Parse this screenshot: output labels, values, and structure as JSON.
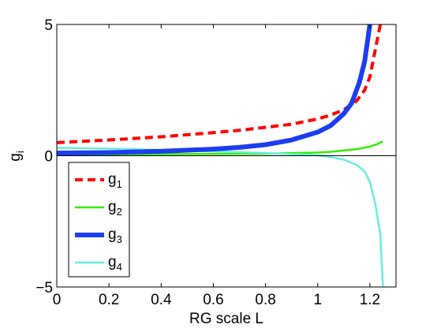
{
  "chart_data": {
    "type": "line",
    "title": "",
    "xlabel": "RG scale L",
    "ylabel": "g",
    "ylabel_subscript": "i",
    "xlim": [
      0,
      1.3
    ],
    "ylim": [
      -5,
      5
    ],
    "xticks": [
      0,
      0.2,
      0.4,
      0.6,
      0.8,
      1,
      1.2
    ],
    "xtick_labels": [
      "0",
      "0.2",
      "0.4",
      "0.6",
      "0.8",
      "1",
      "1.2"
    ],
    "yticks": [
      -5,
      0,
      5
    ],
    "ytick_labels": [
      "−5",
      "0",
      "5"
    ],
    "grid": false,
    "zero_line": true,
    "legend_position": "lower-left",
    "series": [
      {
        "name": "g",
        "subscript": "1",
        "color": "#ff0000",
        "style": "dashed",
        "x": [
          0,
          0.1,
          0.2,
          0.3,
          0.4,
          0.5,
          0.6,
          0.7,
          0.8,
          0.9,
          1.0,
          1.05,
          1.1,
          1.15,
          1.18,
          1.2,
          1.22,
          1.24
        ],
        "y": [
          0.5,
          0.55,
          0.6,
          0.66,
          0.72,
          0.8,
          0.88,
          0.97,
          1.08,
          1.2,
          1.4,
          1.55,
          1.75,
          2.1,
          2.5,
          3.0,
          4.0,
          5.0
        ]
      },
      {
        "name": "g",
        "subscript": "2",
        "color": "#33ee00",
        "style": "solid",
        "x": [
          0,
          0.2,
          0.4,
          0.6,
          0.8,
          0.9,
          1.0,
          1.05,
          1.1,
          1.15,
          1.2,
          1.23,
          1.25
        ],
        "y": [
          0.05,
          0.05,
          0.06,
          0.07,
          0.08,
          0.1,
          0.12,
          0.15,
          0.2,
          0.25,
          0.35,
          0.45,
          0.55
        ]
      },
      {
        "name": "g",
        "subscript": "3",
        "color": "#1c3df0",
        "style": "solid",
        "x": [
          0,
          0.2,
          0.4,
          0.6,
          0.7,
          0.8,
          0.9,
          1.0,
          1.05,
          1.1,
          1.13,
          1.16,
          1.18,
          1.2
        ],
        "y": [
          0.1,
          0.12,
          0.17,
          0.25,
          0.32,
          0.42,
          0.6,
          0.9,
          1.15,
          1.6,
          2.0,
          2.8,
          3.6,
          5.0
        ]
      },
      {
        "name": "g",
        "subscript": "4",
        "color": "#66eedd",
        "style": "solid",
        "x": [
          0,
          0.2,
          0.4,
          0.6,
          0.8,
          1.0,
          1.05,
          1.1,
          1.15,
          1.18,
          1.2,
          1.22,
          1.24,
          1.25
        ],
        "y": [
          0.3,
          0.27,
          0.22,
          0.17,
          0.1,
          0.02,
          -0.05,
          -0.15,
          -0.35,
          -0.6,
          -1.0,
          -1.8,
          -3.0,
          -5.0
        ]
      }
    ]
  }
}
